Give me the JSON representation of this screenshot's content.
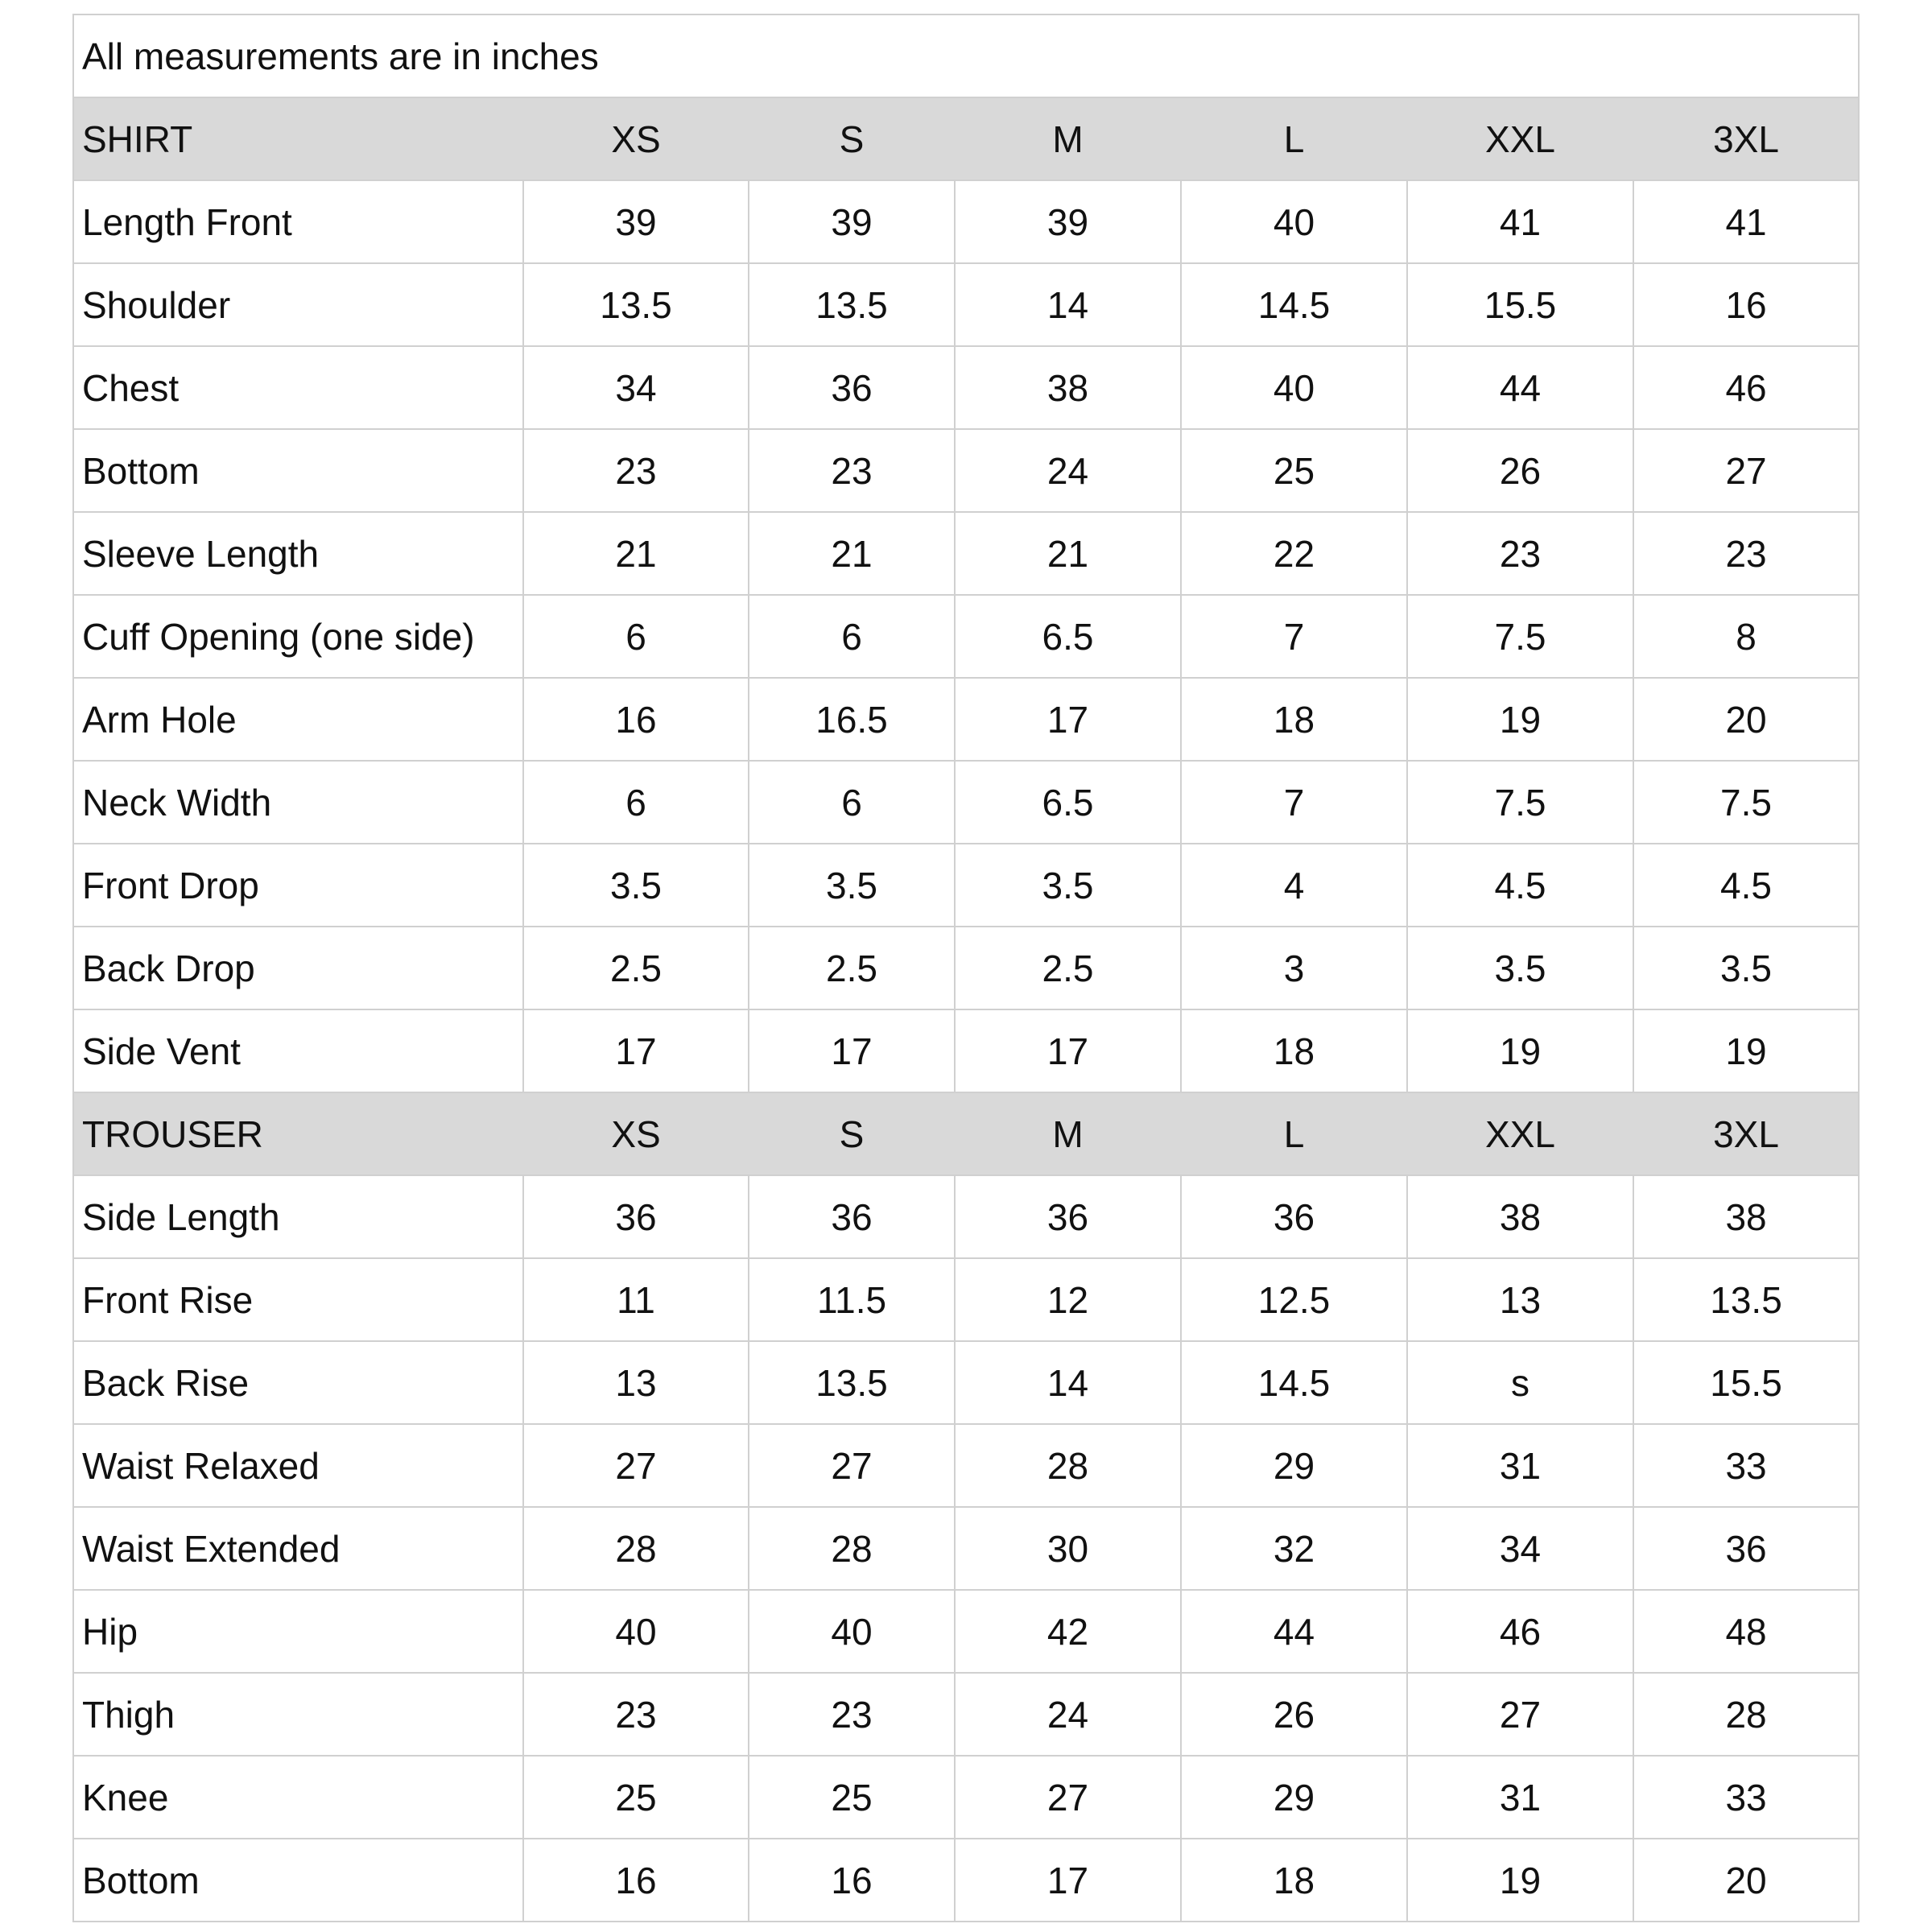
{
  "note": "All measurements are in inches",
  "sections": [
    {
      "header": [
        "SHIRT",
        "XS",
        "S",
        "M",
        "L",
        "XXL",
        "3XL"
      ],
      "rows": [
        [
          "Length Front",
          39,
          39,
          39,
          40,
          41,
          41
        ],
        [
          "Shoulder",
          13.5,
          13.5,
          14,
          14.5,
          15.5,
          16
        ],
        [
          "Chest",
          34,
          36,
          38,
          40,
          44,
          46
        ],
        [
          "Bottom",
          23,
          23,
          24,
          25,
          26,
          27
        ],
        [
          "Sleeve Length",
          21,
          21,
          21,
          22,
          23,
          23
        ],
        [
          "Cuff Opening (one side)",
          6,
          6,
          6.5,
          7,
          7.5,
          8
        ],
        [
          "Arm Hole",
          16,
          16.5,
          17,
          18,
          19,
          20
        ],
        [
          "Neck Width",
          6,
          6,
          6.5,
          7,
          7.5,
          7.5
        ],
        [
          "Front Drop",
          3.5,
          3.5,
          3.5,
          4,
          4.5,
          4.5
        ],
        [
          "Back Drop",
          2.5,
          2.5,
          2.5,
          3,
          3.5,
          3.5
        ],
        [
          "Side Vent",
          17,
          17,
          17,
          18,
          19,
          19
        ]
      ]
    },
    {
      "header": [
        "TROUSER",
        "XS",
        "S",
        "M",
        "L",
        "XXL",
        "3XL"
      ],
      "rows": [
        [
          "Side Length",
          36,
          36,
          36,
          36,
          38,
          38
        ],
        [
          "Front Rise",
          11,
          11.5,
          12,
          12.5,
          13,
          13.5
        ],
        [
          "Back Rise",
          13,
          13.5,
          14,
          14.5,
          "s",
          15.5
        ],
        [
          "Waist Relaxed",
          27,
          27,
          28,
          29,
          31,
          33
        ],
        [
          "Waist Extended",
          28,
          28,
          30,
          32,
          34,
          36
        ],
        [
          "Hip",
          40,
          40,
          42,
          44,
          46,
          48
        ],
        [
          "Thigh",
          23,
          23,
          24,
          26,
          27,
          28
        ],
        [
          "Knee",
          25,
          25,
          27,
          29,
          31,
          33
        ],
        [
          "Bottom",
          16,
          16,
          17,
          18,
          19,
          20
        ]
      ]
    }
  ]
}
